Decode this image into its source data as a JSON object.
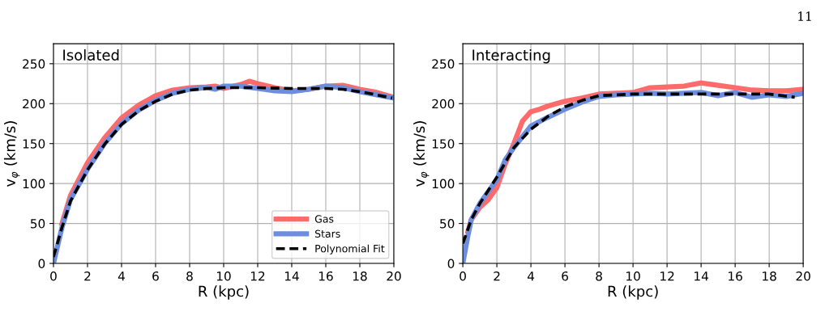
{
  "chart_data": [
    {
      "type": "line",
      "title": "Isolated",
      "xlabel": "R (kpc)",
      "ylabel": "v$_{φ}$ (km/s)",
      "xlim": [
        0,
        20
      ],
      "ylim": [
        0,
        275
      ],
      "xticks": [
        0,
        2,
        4,
        6,
        8,
        10,
        12,
        14,
        16,
        18,
        20
      ],
      "yticks": [
        0,
        50,
        100,
        150,
        200,
        250
      ],
      "grid": true,
      "legend": "bottom right",
      "series": [
        {
          "name": "Gas",
          "color": "#ff6b6b",
          "line_style": "solid",
          "x": [
            0.5,
            1,
            2,
            3,
            4,
            5,
            6,
            7,
            8,
            9,
            9.5,
            10,
            11,
            11.5,
            12,
            13,
            14,
            15,
            16,
            17,
            18,
            19,
            20
          ],
          "values": [
            50,
            85,
            126,
            157,
            182,
            198,
            210,
            217,
            220,
            221,
            222,
            219,
            224,
            228,
            225,
            220,
            216,
            218,
            222,
            223,
            218,
            214,
            208
          ]
        },
        {
          "name": "Stars",
          "color": "#6d8ddf",
          "line_style": "solid",
          "x": [
            0,
            0.5,
            1,
            2,
            3,
            4,
            5,
            6,
            7,
            8,
            9,
            9.5,
            10,
            11,
            12,
            13,
            14,
            15,
            16,
            17,
            18,
            19,
            20
          ],
          "values": [
            0,
            45,
            80,
            118,
            150,
            175,
            192,
            204,
            213,
            218,
            220,
            218,
            222,
            222,
            219,
            216,
            215,
            218,
            222,
            220,
            215,
            211,
            207
          ]
        },
        {
          "name": "Polynomial Fit",
          "color": "#000000",
          "line_style": "dashed",
          "x": [
            0,
            0.5,
            1,
            2,
            3,
            4,
            5,
            6,
            7,
            8,
            9,
            10,
            12,
            14,
            16,
            17,
            18,
            19,
            19.9
          ],
          "values": [
            8,
            45,
            78,
            117,
            149,
            174,
            191,
            203,
            212,
            217,
            219,
            220,
            220,
            219,
            219,
            218,
            215,
            211,
            207
          ]
        }
      ]
    },
    {
      "type": "line",
      "title": "Interacting",
      "xlabel": "R (kpc)",
      "ylabel": "v$_{φ}$ (km/s)",
      "xlim": [
        0,
        20
      ],
      "ylim": [
        0,
        275
      ],
      "xticks": [
        0,
        2,
        4,
        6,
        8,
        10,
        12,
        14,
        16,
        18,
        20
      ],
      "yticks": [
        0,
        50,
        100,
        150,
        200,
        250
      ],
      "grid": true,
      "annotations": [
        "11"
      ],
      "series": [
        {
          "color": "#ff6b6b",
          "line_style": "solid",
          "x": [
            0.3,
            0.5,
            1,
            1.5,
            2,
            2.5,
            3,
            3.5,
            4,
            4.5,
            5,
            6,
            7,
            8,
            9,
            10,
            11,
            12,
            13,
            14,
            15,
            16,
            17,
            18,
            19,
            20
          ],
          "values": [
            40,
            55,
            70,
            80,
            95,
            125,
            150,
            178,
            190,
            193,
            197,
            203,
            207,
            212,
            213,
            214,
            220,
            221,
            222,
            226,
            223,
            220,
            217,
            216,
            216,
            218
          ]
        },
        {
          "color": "#6d8ddf",
          "line_style": "solid",
          "x": [
            0,
            0.3,
            0.5,
            1,
            1.5,
            2,
            2.5,
            3,
            4,
            5,
            6,
            7,
            8,
            9,
            10,
            11,
            12,
            13,
            14,
            15,
            16,
            17,
            18,
            19,
            20
          ],
          "values": [
            0,
            35,
            55,
            75,
            90,
            105,
            130,
            145,
            172,
            183,
            193,
            202,
            209,
            211,
            212,
            213,
            212,
            213,
            214,
            210,
            214,
            208,
            211,
            209,
            213
          ]
        },
        {
          "color": "#000000",
          "line_style": "dashed",
          "x": [
            0,
            0.5,
            1,
            2,
            3,
            4,
            5,
            6,
            7,
            8,
            10,
            12,
            14,
            16,
            18,
            19.5
          ],
          "values": [
            25,
            55,
            75,
            108,
            145,
            168,
            184,
            196,
            204,
            210,
            212,
            212,
            212,
            212,
            212,
            208
          ]
        }
      ]
    }
  ]
}
